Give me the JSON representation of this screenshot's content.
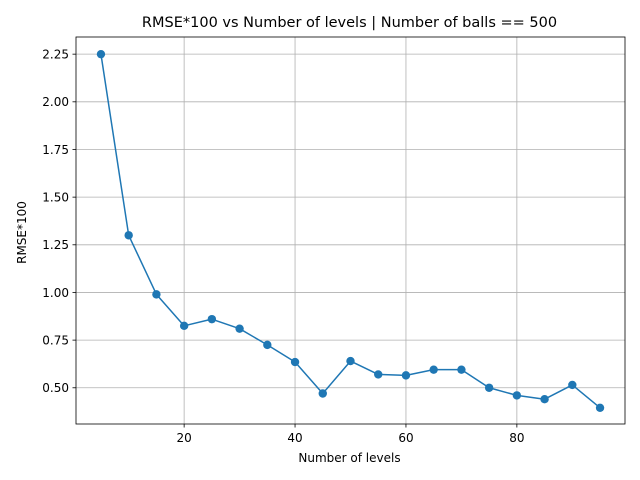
{
  "chart_data": {
    "type": "line",
    "title": "RMSE*100 vs Number of levels | Number of balls == 500",
    "xlabel": "Number of levels",
    "ylabel": "RMSE*100",
    "xlim": [
      0.5,
      99.5
    ],
    "ylim": [
      0.31,
      2.34
    ],
    "xticks": [
      20,
      40,
      60,
      80
    ],
    "xtick_labels": [
      "20",
      "40",
      "60",
      "80"
    ],
    "yticks": [
      0.5,
      0.75,
      1.0,
      1.25,
      1.5,
      1.75,
      2.0,
      2.25
    ],
    "ytick_labels": [
      "0.50",
      "0.75",
      "1.00",
      "1.25",
      "1.50",
      "1.75",
      "2.00",
      "2.25"
    ],
    "grid": true,
    "marker": "circle",
    "color": "#1f77b4",
    "x": [
      5,
      10,
      15,
      20,
      25,
      30,
      35,
      40,
      45,
      50,
      55,
      60,
      65,
      70,
      75,
      80,
      85,
      90,
      95
    ],
    "y": [
      2.25,
      1.3,
      0.99,
      0.825,
      0.86,
      0.81,
      0.725,
      0.635,
      0.47,
      0.64,
      0.57,
      0.565,
      0.595,
      0.595,
      0.5,
      0.46,
      0.44,
      0.515,
      0.395
    ]
  }
}
